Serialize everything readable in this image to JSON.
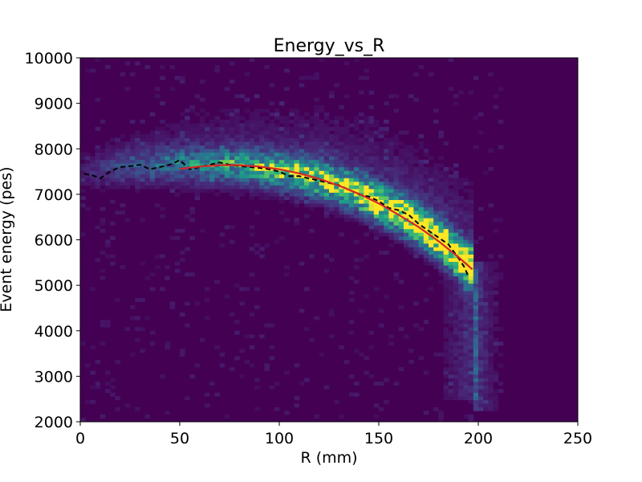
{
  "chart_data": {
    "type": "heatmap",
    "title": "Energy_vs_R",
    "xlabel": "R (mm)",
    "ylabel": "Event energy (pes)",
    "xlim": [
      0,
      250
    ],
    "ylim": [
      2000,
      10000
    ],
    "xticks": [
      0,
      50,
      100,
      150,
      200,
      250
    ],
    "yticks": [
      2000,
      3000,
      4000,
      5000,
      6000,
      7000,
      8000,
      9000,
      10000
    ],
    "grid": false,
    "legend": "none",
    "colormap": "viridis",
    "colors": {
      "background_bin": "#440154",
      "profile_line": "#000000",
      "fit_line": "#d62728"
    },
    "density_ridge": {
      "description_points_r": [
        0,
        20,
        50,
        80,
        100,
        120,
        140,
        160,
        180,
        195
      ],
      "peak_energy": [
        7400,
        7600,
        7650,
        7600,
        7500,
        7300,
        7000,
        6550,
        6000,
        5400
      ]
    },
    "series": [
      {
        "style": "dashed",
        "color": "#000000",
        "points": [
          [
            2,
            7450
          ],
          [
            6,
            7420
          ],
          [
            10,
            7350
          ],
          [
            15,
            7500
          ],
          [
            20,
            7600
          ],
          [
            25,
            7620
          ],
          [
            30,
            7650
          ],
          [
            35,
            7550
          ],
          [
            40,
            7600
          ],
          [
            45,
            7650
          ],
          [
            50,
            7750
          ],
          [
            55,
            7550
          ],
          [
            60,
            7600
          ],
          [
            65,
            7650
          ],
          [
            70,
            7700
          ],
          [
            75,
            7650
          ],
          [
            80,
            7620
          ],
          [
            85,
            7600
          ],
          [
            90,
            7580
          ],
          [
            95,
            7550
          ],
          [
            100,
            7500
          ],
          [
            105,
            7400
          ],
          [
            110,
            7400
          ],
          [
            115,
            7350
          ],
          [
            120,
            7300
          ],
          [
            125,
            7250
          ],
          [
            130,
            7200
          ],
          [
            135,
            7100
          ],
          [
            140,
            7000
          ],
          [
            145,
            6950
          ],
          [
            150,
            6850
          ],
          [
            155,
            6700
          ],
          [
            160,
            6650
          ],
          [
            165,
            6550
          ],
          [
            170,
            6350
          ],
          [
            175,
            6200
          ],
          [
            180,
            6050
          ],
          [
            185,
            5900
          ],
          [
            190,
            5600
          ],
          [
            193,
            5400
          ],
          [
            195,
            5200
          ]
        ]
      },
      {
        "style": "solid",
        "color": "#d62728",
        "points": [
          [
            50,
            7560
          ],
          [
            60,
            7610
          ],
          [
            70,
            7640
          ],
          [
            80,
            7640
          ],
          [
            90,
            7610
          ],
          [
            100,
            7550
          ],
          [
            110,
            7460
          ],
          [
            120,
            7340
          ],
          [
            130,
            7190
          ],
          [
            140,
            7010
          ],
          [
            150,
            6800
          ],
          [
            160,
            6550
          ],
          [
            170,
            6280
          ],
          [
            180,
            5970
          ],
          [
            190,
            5620
          ],
          [
            197,
            5350
          ]
        ]
      }
    ]
  }
}
